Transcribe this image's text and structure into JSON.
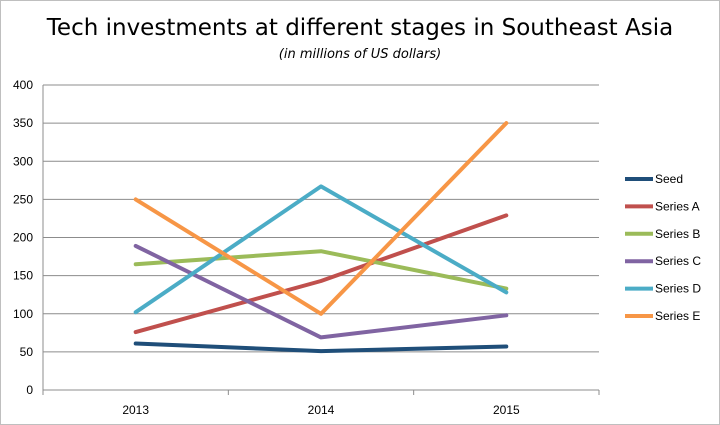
{
  "chart_data": {
    "type": "line",
    "title": "Tech investments at different stages in Southeast Asia",
    "subtitle": "(in millions of US dollars)",
    "xlabel": "",
    "ylabel": "",
    "x": [
      "2013",
      "2014",
      "2015"
    ],
    "ylim": [
      0,
      400
    ],
    "yticks": [
      "0",
      "50",
      "100",
      "150",
      "200",
      "250",
      "300",
      "350",
      "400"
    ],
    "grid": "horizontal",
    "legend": "right",
    "series": [
      {
        "name": "Seed",
        "color": "#1f4e79",
        "values": [
          61,
          51,
          57
        ]
      },
      {
        "name": "Series A",
        "color": "#c0504d",
        "values": [
          76,
          143,
          229
        ]
      },
      {
        "name": "Series B",
        "color": "#9bbb59",
        "values": [
          165,
          182,
          133
        ]
      },
      {
        "name": "Series C",
        "color": "#8064a2",
        "values": [
          189,
          69,
          98
        ]
      },
      {
        "name": "Series D",
        "color": "#4bacc6",
        "values": [
          102,
          267,
          128
        ]
      },
      {
        "name": "Series E",
        "color": "#f79646",
        "values": [
          250,
          100,
          350
        ]
      }
    ]
  }
}
